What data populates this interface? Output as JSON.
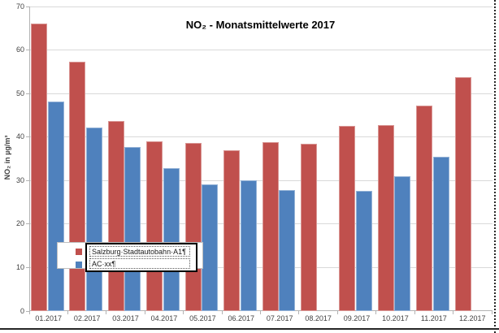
{
  "chart_data": {
    "type": "bar",
    "title": "NO₂ - Monatsmittelwerte 2017",
    "ylabel": "NO₂ in µg/m³",
    "ylim": [
      0,
      70
    ],
    "yticks": [
      0,
      10,
      20,
      30,
      40,
      50,
      60,
      70
    ],
    "grid": "horizontal-only",
    "legend_position": "overlay-bottom-left",
    "categories": [
      "01.2017",
      "02.2017",
      "03.2017",
      "04.2017",
      "05.2017",
      "06.2017",
      "07.2017",
      "08.2017",
      "09.2017",
      "10.2017",
      "11.2017",
      "12.2017"
    ],
    "series": [
      {
        "name": "Salzburg Stadtautobahn A1",
        "slug": "salzburg-stadtautobahn-a1",
        "color": "#C0504D",
        "values": [
          66.0,
          57.4,
          43.6,
          39.1,
          38.6,
          37.0,
          38.9,
          38.4,
          42.5,
          42.8,
          47.2,
          53.7
        ]
      },
      {
        "name": "AC xx",
        "slug": "ac-xx",
        "color": "#4F81BD",
        "values": [
          48.2,
          42.1,
          37.7,
          32.8,
          29.2,
          30.0,
          27.9,
          null,
          27.6,
          31.0,
          35.4,
          null
        ]
      }
    ]
  },
  "legend_editbox": {
    "line1": "Salzburg·Stadtautobahn·A1¶",
    "line2": "AC·xx¶"
  },
  "colors": {
    "series_red": "#C0504D",
    "series_blue": "#4F81BD",
    "gridline": "#d9d9d9",
    "axis": "#b3b3b3",
    "tick_label": "#404040",
    "title": "#000000"
  }
}
